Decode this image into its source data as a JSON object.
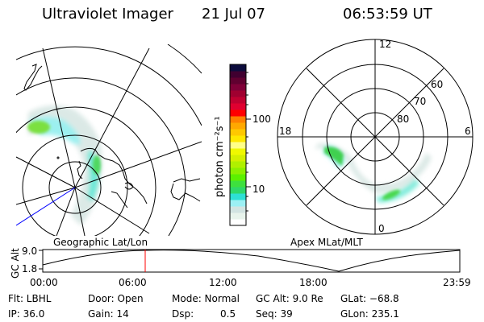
{
  "header": {
    "instrument": "Ultraviolet Imager",
    "date": "21 Jul 07",
    "time": "06:53:59 UT"
  },
  "geo_map": {
    "label": "Geographic Lat/Lon"
  },
  "colorbar": {
    "unit_label": "photon cm⁻²s⁻¹",
    "ticks": [
      "100",
      "10"
    ],
    "scale": "log",
    "colors": [
      "#ffffff",
      "#e8f4ec",
      "#d2e4e2",
      "#9cf0f4",
      "#2ee0d4",
      "#2ed86a",
      "#3ee03e",
      "#5cf000",
      "#8cf000",
      "#b0f000",
      "#d4f000",
      "#f0f800",
      "#ffff88",
      "#ffe800",
      "#ffc800",
      "#ffa800",
      "#ff8000",
      "#ff0000",
      "#e00030",
      "#c00030",
      "#a00030",
      "#800038",
      "#600030",
      "#400030",
      "#0c0c3c"
    ]
  },
  "polar_plot": {
    "label": "Apex MLat/MLT",
    "mlt_labels": {
      "top": "12",
      "bottom": "0",
      "left": "18",
      "right": "6"
    },
    "lat_labels": [
      "60",
      "70",
      "80"
    ]
  },
  "altitude_plot": {
    "ylabel": "GC Alt",
    "yticks": [
      "9.0",
      "1.8"
    ],
    "xticks": [
      "00:00",
      "06:00",
      "12:00",
      "18:00",
      "23:59"
    ],
    "current_time_marker": "06:53:59",
    "marker_color": "#ff0000"
  },
  "status": {
    "filter": "Flt: LBHL",
    "ip": "IP: 36.0",
    "door": "Door: Open",
    "gain": "Gain: 14",
    "mode": "Mode: Normal",
    "dsp_label": "Dsp:",
    "dsp_value": "0.5",
    "gc_alt": "GC Alt: 9.0 Re",
    "seq": "Seq: 39",
    "glat": "GLat: −68.8",
    "glon": "GLon: 235.1"
  }
}
